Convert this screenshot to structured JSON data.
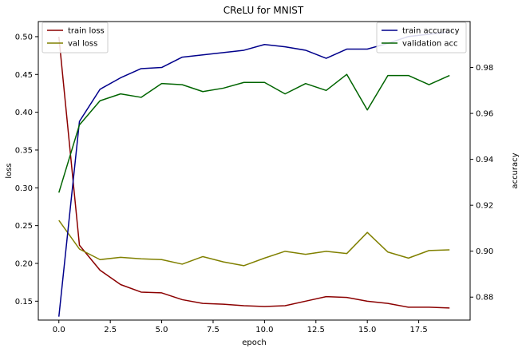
{
  "chart_data": {
    "type": "line",
    "title": "CReLU for MNIST",
    "xlabel": "epoch",
    "ylabel_left": "loss",
    "ylabel_right": "accuracy",
    "xlim": [
      -1.0,
      20.0
    ],
    "ylim_left": [
      0.125,
      0.52
    ],
    "ylim_right": [
      0.87,
      1.0
    ],
    "xticks": [
      "0.0",
      "2.5",
      "5.0",
      "7.5",
      "10.0",
      "12.5",
      "15.0",
      "17.5"
    ],
    "xtick_values": [
      0,
      2.5,
      5,
      7.5,
      10,
      12.5,
      15,
      17.5
    ],
    "yticks_left": [
      "0.15",
      "0.20",
      "0.25",
      "0.30",
      "0.35",
      "0.40",
      "0.45",
      "0.50"
    ],
    "ytick_values_left": [
      0.15,
      0.2,
      0.25,
      0.3,
      0.35,
      0.4,
      0.45,
      0.5
    ],
    "yticks_right": [
      "0.88",
      "0.90",
      "0.92",
      "0.94",
      "0.96",
      "0.98"
    ],
    "ytick_values_right": [
      0.88,
      0.9,
      0.92,
      0.94,
      0.96,
      0.98
    ],
    "x": [
      0,
      1,
      2,
      3,
      4,
      5,
      6,
      7,
      8,
      9,
      10,
      11,
      12,
      13,
      14,
      15,
      16,
      17,
      18,
      19
    ],
    "grid": false,
    "series": [
      {
        "name": "train loss",
        "axis": "left",
        "color": "#8b0000",
        "values": [
          0.5,
          0.224,
          0.191,
          0.172,
          0.162,
          0.161,
          0.152,
          0.147,
          0.146,
          0.144,
          0.143,
          0.144,
          0.15,
          0.156,
          0.155,
          0.15,
          0.147,
          0.142,
          0.142,
          0.141
        ]
      },
      {
        "name": "val loss",
        "axis": "left",
        "color": "#808000",
        "values": [
          0.257,
          0.219,
          0.205,
          0.208,
          0.206,
          0.205,
          0.199,
          0.209,
          0.202,
          0.197,
          0.207,
          0.216,
          0.212,
          0.216,
          0.213,
          0.241,
          0.215,
          0.207,
          0.217,
          0.218
        ]
      },
      {
        "name": "train accuracy",
        "axis": "right",
        "color": "#00008b",
        "values": [
          0.8715,
          0.9565,
          0.9705,
          0.9755,
          0.9795,
          0.98,
          0.9845,
          0.9855,
          0.9865,
          0.9875,
          0.99,
          0.989,
          0.9875,
          0.984,
          0.988,
          0.988,
          0.9905,
          0.9935,
          0.9945,
          0.9955
        ]
      },
      {
        "name": "validation acc",
        "axis": "right",
        "color": "#006400",
        "values": [
          0.9255,
          0.955,
          0.9655,
          0.9685,
          0.967,
          0.973,
          0.9725,
          0.9695,
          0.971,
          0.9735,
          0.9735,
          0.9685,
          0.973,
          0.97,
          0.977,
          0.9615,
          0.9765,
          0.9765,
          0.9725,
          0.9765
        ]
      }
    ],
    "legends": [
      {
        "placement": "top-left",
        "entries": [
          "train loss",
          "val loss"
        ]
      },
      {
        "placement": "top-right",
        "entries": [
          "train accuracy",
          "validation acc"
        ]
      }
    ]
  }
}
